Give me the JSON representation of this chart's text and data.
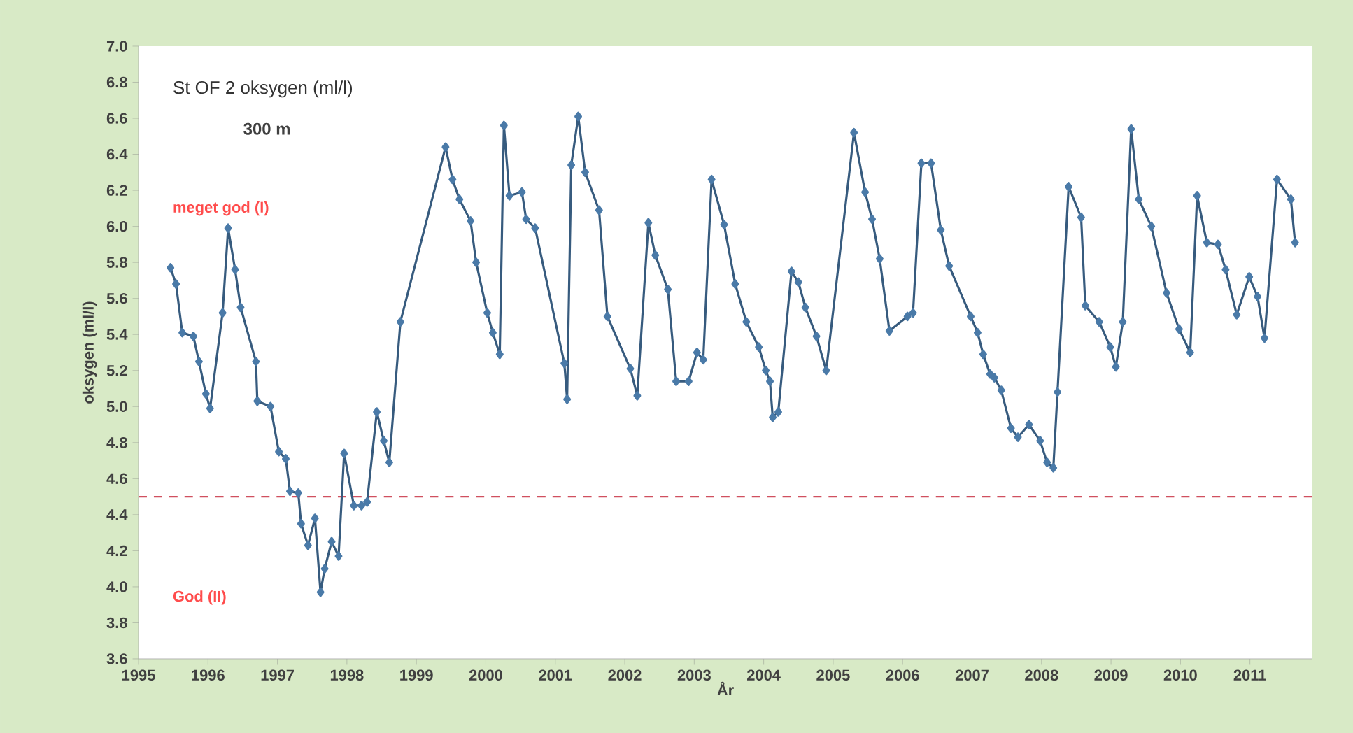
{
  "chart_data": {
    "type": "line",
    "title": "St OF 2 oksygen (ml/l)",
    "subtitle": "300 m",
    "xlabel": "År",
    "ylabel": "oksygen (ml/l)",
    "annotations": [
      "meget god (I)",
      "God (II)"
    ],
    "xlim": [
      1995,
      2011.9
    ],
    "xticks": [
      1995,
      1996,
      1997,
      1998,
      1999,
      2000,
      2001,
      2002,
      2003,
      2004,
      2005,
      2006,
      2007,
      2008,
      2009,
      2010,
      2011
    ],
    "ylim": [
      3.6,
      7.0
    ],
    "yticks": [
      3.6,
      3.8,
      {
        "value": 4.0,
        "label": "4.0"
      },
      4.2,
      4.4,
      4.6,
      4.8,
      {
        "value": 5.0,
        "label": "5.0"
      },
      5.2,
      5.4,
      5.6,
      5.8,
      {
        "value": 6.0,
        "label": "6.0"
      },
      6.2,
      6.4,
      6.6,
      6.8,
      {
        "value": 7.0,
        "label": "7.0"
      }
    ],
    "grid": false,
    "marker": "diamond",
    "line_style": "solid",
    "ref_lines": [
      {
        "axis": "y",
        "value": 4.5,
        "color": "#d0505f",
        "line_style": "dashed"
      }
    ],
    "series": [
      {
        "color": "#4a7aa8",
        "x": [
          1995.46,
          1995.54,
          1995.63,
          1995.79,
          1995.87,
          1995.97,
          1996.03,
          1996.21,
          1996.29,
          1996.39,
          1996.47,
          1996.69,
          1996.71,
          1996.9,
          1997.02,
          1997.12,
          1997.18,
          1997.3,
          1997.34,
          1997.44,
          1997.54,
          1997.62,
          1997.68,
          1997.78,
          1997.88,
          1997.96,
          1998.1,
          1998.21,
          1998.29,
          1998.43,
          1998.53,
          1998.61,
          1998.77,
          1999.42,
          1999.52,
          1999.62,
          1999.78,
          1999.86,
          2000.02,
          2000.1,
          2000.2,
          2000.26,
          2000.34,
          2000.52,
          2000.58,
          2000.71,
          2001.13,
          2001.17,
          2001.23,
          2001.33,
          2001.43,
          2001.63,
          2001.75,
          2002.08,
          2002.18,
          2002.34,
          2002.44,
          2002.62,
          2002.74,
          2002.92,
          2003.04,
          2003.13,
          2003.25,
          2003.43,
          2003.59,
          2003.75,
          2003.93,
          2004.03,
          2004.09,
          2004.13,
          2004.21,
          2004.4,
          2004.5,
          2004.6,
          2004.76,
          2004.9,
          2005.3,
          2005.46,
          2005.56,
          2005.67,
          2005.81,
          2006.07,
          2006.15,
          2006.27,
          2006.41,
          2006.55,
          2006.67,
          2006.98,
          2007.08,
          2007.16,
          2007.26,
          2007.32,
          2007.42,
          2007.56,
          2007.66,
          2007.82,
          2007.98,
          2008.08,
          2008.17,
          2008.23,
          2008.39,
          2008.57,
          2008.63,
          2008.83,
          2008.99,
          2009.07,
          2009.17,
          2009.29,
          2009.4,
          2009.58,
          2009.8,
          2009.98,
          2010.14,
          2010.24,
          2010.38,
          2010.54,
          2010.65,
          2010.81,
          2010.99,
          2011.11,
          2011.21,
          2011.39,
          2011.59,
          2011.65
        ],
        "values": [
          5.77,
          5.68,
          5.41,
          5.39,
          5.25,
          5.07,
          4.99,
          5.52,
          5.99,
          5.76,
          5.55,
          5.25,
          5.03,
          5.0,
          4.75,
          4.71,
          4.53,
          4.52,
          4.35,
          4.23,
          4.38,
          3.97,
          4.1,
          4.25,
          4.17,
          4.74,
          4.45,
          4.45,
          4.47,
          4.97,
          4.81,
          4.69,
          5.47,
          6.44,
          6.26,
          6.15,
          6.03,
          5.8,
          5.52,
          5.41,
          5.29,
          6.56,
          6.17,
          6.19,
          6.04,
          5.99,
          5.24,
          5.04,
          6.34,
          6.61,
          6.3,
          6.09,
          5.5,
          5.21,
          5.06,
          6.02,
          5.84,
          5.65,
          5.14,
          5.14,
          5.3,
          5.26,
          6.26,
          6.01,
          5.68,
          5.47,
          5.33,
          5.2,
          5.14,
          4.94,
          4.97,
          5.75,
          5.69,
          5.55,
          5.39,
          5.2,
          6.52,
          6.19,
          6.04,
          5.82,
          5.42,
          5.5,
          5.52,
          6.35,
          6.35,
          5.98,
          5.78,
          5.5,
          5.41,
          5.29,
          5.18,
          5.16,
          5.09,
          4.88,
          4.83,
          4.9,
          4.81,
          4.69,
          4.66,
          5.08,
          6.22,
          6.05,
          5.56,
          5.47,
          5.33,
          5.22,
          5.47,
          6.54,
          6.15,
          6.0,
          5.63,
          5.43,
          5.3,
          6.17,
          5.91,
          5.9,
          5.76,
          5.51,
          5.72,
          5.61,
          5.38,
          6.26,
          6.15,
          5.91
        ]
      }
    ]
  }
}
